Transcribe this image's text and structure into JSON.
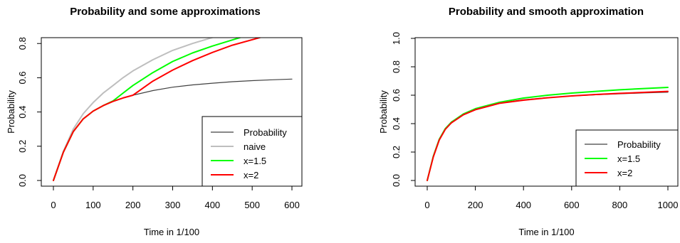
{
  "chart_data": [
    {
      "type": "line",
      "title": "Probability and some approximations",
      "xlabel": "Time in 1/100",
      "ylabel": "Probability",
      "xlim": [
        0,
        600
      ],
      "ylim": [
        0,
        0.83
      ],
      "xticks": [
        0,
        100,
        200,
        300,
        400,
        500,
        600
      ],
      "xtick_labels": [
        "0",
        "100",
        "200",
        "300",
        "400",
        "500",
        "600"
      ],
      "yticks": [
        0.0,
        0.2,
        0.4,
        0.6,
        0.8
      ],
      "ytick_labels": [
        "0.0",
        "0.2",
        "0.4",
        "0.6",
        "0.8"
      ],
      "grid": false,
      "legend_position": "bottom-right",
      "series": [
        {
          "name": "Probability",
          "color": "#404040",
          "x": [
            0,
            25,
            50,
            75,
            100,
            125,
            150,
            175,
            200,
            250,
            300,
            350,
            400,
            450,
            500,
            550,
            600
          ],
          "y": [
            0.0,
            0.165,
            0.285,
            0.36,
            0.405,
            0.437,
            0.462,
            0.482,
            0.498,
            0.525,
            0.545,
            0.558,
            0.568,
            0.577,
            0.583,
            0.588,
            0.592
          ]
        },
        {
          "name": "naive",
          "color": "#bebebe",
          "x": [
            0,
            25,
            50,
            75,
            100,
            125,
            150,
            175,
            200,
            250,
            300,
            350,
            400
          ],
          "y": [
            0.0,
            0.17,
            0.3,
            0.39,
            0.455,
            0.51,
            0.555,
            0.6,
            0.64,
            0.705,
            0.76,
            0.8,
            0.835
          ]
        },
        {
          "name": "x=1.5",
          "color": "#00ff00",
          "x": [
            0,
            25,
            50,
            75,
            100,
            125,
            150,
            175,
            200,
            250,
            300,
            350,
            400,
            470
          ],
          "y": [
            0.0,
            0.165,
            0.285,
            0.36,
            0.405,
            0.437,
            0.465,
            0.51,
            0.555,
            0.63,
            0.695,
            0.745,
            0.785,
            0.835
          ]
        },
        {
          "name": "x=2",
          "color": "#ff0000",
          "x": [
            0,
            25,
            50,
            75,
            100,
            125,
            150,
            175,
            200,
            250,
            300,
            350,
            400,
            450,
            520
          ],
          "y": [
            0.0,
            0.165,
            0.285,
            0.36,
            0.405,
            0.437,
            0.462,
            0.482,
            0.498,
            0.58,
            0.645,
            0.7,
            0.748,
            0.79,
            0.835
          ]
        }
      ]
    },
    {
      "type": "line",
      "title": "Probability and smooth approximation",
      "xlabel": "Time in 1/100",
      "ylabel": "Probability",
      "xlim": [
        0,
        1000
      ],
      "ylim": [
        0,
        1.0
      ],
      "xticks": [
        0,
        200,
        400,
        600,
        800,
        1000
      ],
      "xtick_labels": [
        "0",
        "200",
        "400",
        "600",
        "800",
        "1000"
      ],
      "yticks": [
        0.0,
        0.2,
        0.4,
        0.6,
        0.8,
        1.0
      ],
      "ytick_labels": [
        "0.0",
        "0.2",
        "0.4",
        "0.6",
        "0.8",
        "1.0"
      ],
      "grid": false,
      "legend_position": "bottom-right",
      "series": [
        {
          "name": "Probability",
          "color": "#404040",
          "x": [
            0,
            25,
            50,
            75,
            100,
            150,
            200,
            300,
            400,
            500,
            600,
            700,
            800,
            900,
            1000
          ],
          "y": [
            0.0,
            0.165,
            0.285,
            0.36,
            0.405,
            0.462,
            0.498,
            0.545,
            0.568,
            0.583,
            0.594,
            0.603,
            0.61,
            0.616,
            0.621
          ]
        },
        {
          "name": "x=1.5",
          "color": "#00ff00",
          "x": [
            0,
            25,
            50,
            75,
            100,
            150,
            200,
            300,
            400,
            500,
            600,
            700,
            800,
            900,
            1000
          ],
          "y": [
            0.0,
            0.17,
            0.29,
            0.365,
            0.41,
            0.468,
            0.505,
            0.55,
            0.58,
            0.6,
            0.615,
            0.627,
            0.638,
            0.647,
            0.655
          ]
        },
        {
          "name": "x=2",
          "color": "#ff0000",
          "x": [
            0,
            25,
            50,
            75,
            100,
            150,
            200,
            300,
            400,
            500,
            600,
            700,
            800,
            900,
            1000
          ],
          "y": [
            0.0,
            0.165,
            0.285,
            0.36,
            0.405,
            0.462,
            0.498,
            0.543,
            0.565,
            0.582,
            0.595,
            0.605,
            0.613,
            0.62,
            0.627
          ]
        }
      ]
    }
  ]
}
